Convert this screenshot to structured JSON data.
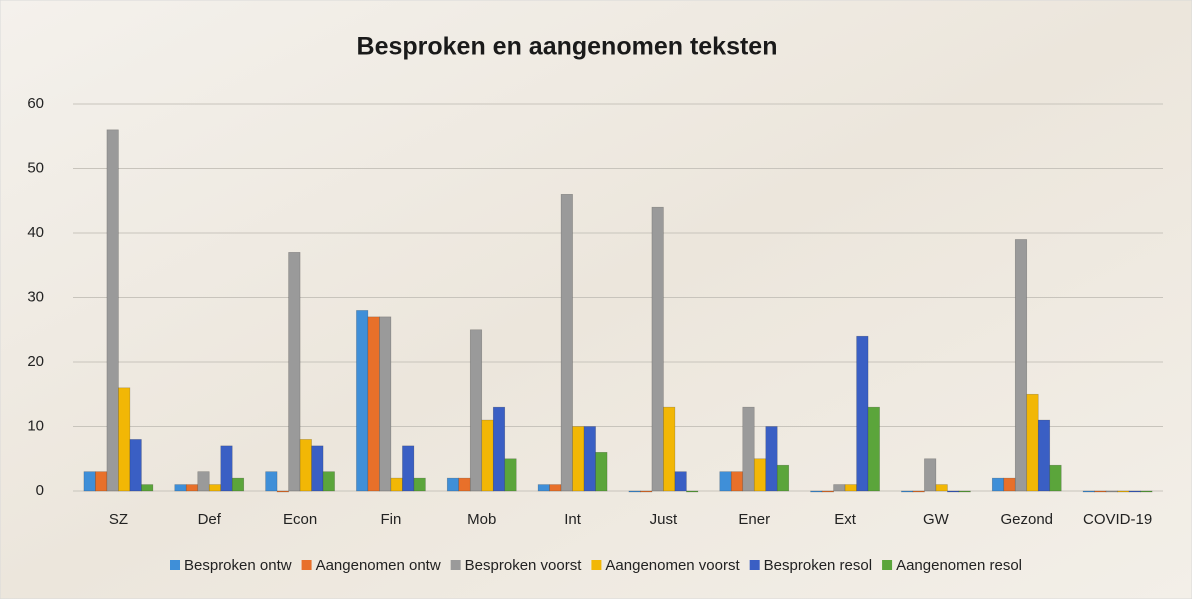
{
  "chart_data": {
    "type": "bar",
    "title": "Besproken en aangenomen teksten",
    "categories": [
      "SZ",
      "Def",
      "Econ",
      "Fin",
      "Mob",
      "Int",
      "Just",
      "Ener",
      "Ext",
      "GW",
      "Gezond",
      "COVID-19"
    ],
    "series": [
      {
        "name": "Besproken ontw",
        "color": "#3f8fd8",
        "values": [
          3,
          1,
          3,
          28,
          2,
          1,
          0,
          3,
          0,
          0,
          2,
          0
        ]
      },
      {
        "name": "Aangenomen ontw",
        "color": "#e8702a",
        "values": [
          3,
          1,
          0,
          27,
          2,
          1,
          0,
          3,
          0,
          0,
          2,
          0
        ]
      },
      {
        "name": "Besproken voorst",
        "color": "#9a9a9a",
        "values": [
          56,
          3,
          37,
          27,
          25,
          46,
          44,
          13,
          1,
          5,
          39,
          0
        ]
      },
      {
        "name": "Aangenomen voorst",
        "color": "#f2b705",
        "values": [
          16,
          1,
          8,
          2,
          11,
          10,
          13,
          5,
          1,
          1,
          15,
          0
        ]
      },
      {
        "name": "Besproken resol",
        "color": "#3a5fc4",
        "values": [
          8,
          7,
          7,
          7,
          13,
          10,
          3,
          10,
          24,
          0,
          11,
          0
        ]
      },
      {
        "name": "Aangenomen resol",
        "color": "#5ba53b",
        "values": [
          1,
          2,
          3,
          2,
          5,
          6,
          0,
          4,
          13,
          0,
          4,
          0
        ]
      }
    ],
    "ylim": [
      0,
      60
    ],
    "yticks": [
      0,
      10,
      20,
      30,
      40,
      50,
      60
    ],
    "grid": true,
    "legend": "bottom"
  }
}
